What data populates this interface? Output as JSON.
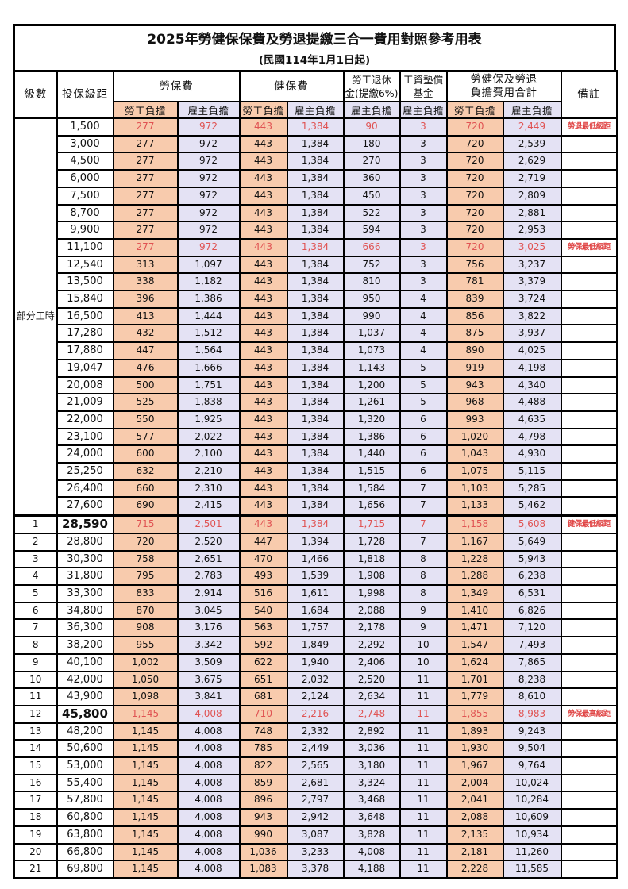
{
  "title": "2025年勞健保保費及勞退提繳三合一費用對照參考用表",
  "subtitle": "(民國114年1月1日起)",
  "colors": {
    "employee_bg": "#F8CBAD",
    "employer_bg": "#E4E2F4",
    "highlight_red": "#E05353",
    "remark_red": "#E04545"
  },
  "headers": {
    "level": "級數",
    "bracket": "投保級距",
    "labor_ins": "勞保費",
    "health_ins": "健保費",
    "pension_line1": "勞工退休",
    "pension_line2": "金(提繳6%)",
    "fund_line1": "工資墊償",
    "fund_line2": "基金",
    "total_line1": "勞健保及勞退",
    "total_line2": "負擔費用合計",
    "remark": "備註",
    "employee_share": "勞工負擔",
    "employer_share": "雇主負擔"
  },
  "part_time": {
    "label": "部分工時",
    "row_span": 23
  },
  "rows": [
    {
      "level": "",
      "bracket": "1,500",
      "values": [
        "277",
        "972",
        "443",
        "1,384",
        "90",
        "3",
        "720",
        "2,449"
      ],
      "remark": "勞退最低級距",
      "red": true,
      "bold": false,
      "thick": false
    },
    {
      "level": "",
      "bracket": "3,000",
      "values": [
        "277",
        "972",
        "443",
        "1,384",
        "180",
        "3",
        "720",
        "2,539"
      ],
      "remark": "",
      "red": false,
      "bold": false,
      "thick": false
    },
    {
      "level": "",
      "bracket": "4,500",
      "values": [
        "277",
        "972",
        "443",
        "1,384",
        "270",
        "3",
        "720",
        "2,629"
      ],
      "remark": "",
      "red": false,
      "bold": false,
      "thick": false
    },
    {
      "level": "",
      "bracket": "6,000",
      "values": [
        "277",
        "972",
        "443",
        "1,384",
        "360",
        "3",
        "720",
        "2,719"
      ],
      "remark": "",
      "red": false,
      "bold": false,
      "thick": false
    },
    {
      "level": "",
      "bracket": "7,500",
      "values": [
        "277",
        "972",
        "443",
        "1,384",
        "450",
        "3",
        "720",
        "2,809"
      ],
      "remark": "",
      "red": false,
      "bold": false,
      "thick": false
    },
    {
      "level": "",
      "bracket": "8,700",
      "values": [
        "277",
        "972",
        "443",
        "1,384",
        "522",
        "3",
        "720",
        "2,881"
      ],
      "remark": "",
      "red": false,
      "bold": false,
      "thick": false
    },
    {
      "level": "",
      "bracket": "9,900",
      "values": [
        "277",
        "972",
        "443",
        "1,384",
        "594",
        "3",
        "720",
        "2,953"
      ],
      "remark": "",
      "red": false,
      "bold": false,
      "thick": false
    },
    {
      "level": "",
      "bracket": "11,100",
      "values": [
        "277",
        "972",
        "443",
        "1,384",
        "666",
        "3",
        "720",
        "3,025"
      ],
      "remark": "勞保最低級距",
      "red": true,
      "bold": false,
      "thick": false
    },
    {
      "level": "",
      "bracket": "12,540",
      "values": [
        "313",
        "1,097",
        "443",
        "1,384",
        "752",
        "3",
        "756",
        "3,237"
      ],
      "remark": "",
      "red": false,
      "bold": false,
      "thick": false
    },
    {
      "level": "",
      "bracket": "13,500",
      "values": [
        "338",
        "1,182",
        "443",
        "1,384",
        "810",
        "3",
        "781",
        "3,379"
      ],
      "remark": "",
      "red": false,
      "bold": false,
      "thick": false
    },
    {
      "level": "",
      "bracket": "15,840",
      "values": [
        "396",
        "1,386",
        "443",
        "1,384",
        "950",
        "4",
        "839",
        "3,724"
      ],
      "remark": "",
      "red": false,
      "bold": false,
      "thick": false
    },
    {
      "level": "",
      "bracket": "16,500",
      "values": [
        "413",
        "1,444",
        "443",
        "1,384",
        "990",
        "4",
        "856",
        "3,822"
      ],
      "remark": "",
      "red": false,
      "bold": false,
      "thick": false
    },
    {
      "level": "",
      "bracket": "17,280",
      "values": [
        "432",
        "1,512",
        "443",
        "1,384",
        "1,037",
        "4",
        "875",
        "3,937"
      ],
      "remark": "",
      "red": false,
      "bold": false,
      "thick": false
    },
    {
      "level": "",
      "bracket": "17,880",
      "values": [
        "447",
        "1,564",
        "443",
        "1,384",
        "1,073",
        "4",
        "890",
        "4,025"
      ],
      "remark": "",
      "red": false,
      "bold": false,
      "thick": false
    },
    {
      "level": "",
      "bracket": "19,047",
      "values": [
        "476",
        "1,666",
        "443",
        "1,384",
        "1,143",
        "5",
        "919",
        "4,198"
      ],
      "remark": "",
      "red": false,
      "bold": false,
      "thick": false
    },
    {
      "level": "",
      "bracket": "20,008",
      "values": [
        "500",
        "1,751",
        "443",
        "1,384",
        "1,200",
        "5",
        "943",
        "4,340"
      ],
      "remark": "",
      "red": false,
      "bold": false,
      "thick": false
    },
    {
      "level": "",
      "bracket": "21,009",
      "values": [
        "525",
        "1,838",
        "443",
        "1,384",
        "1,261",
        "5",
        "968",
        "4,488"
      ],
      "remark": "",
      "red": false,
      "bold": false,
      "thick": false
    },
    {
      "level": "",
      "bracket": "22,000",
      "values": [
        "550",
        "1,925",
        "443",
        "1,384",
        "1,320",
        "6",
        "993",
        "4,635"
      ],
      "remark": "",
      "red": false,
      "bold": false,
      "thick": false
    },
    {
      "level": "",
      "bracket": "23,100",
      "values": [
        "577",
        "2,022",
        "443",
        "1,384",
        "1,386",
        "6",
        "1,020",
        "4,798"
      ],
      "remark": "",
      "red": false,
      "bold": false,
      "thick": false
    },
    {
      "level": "",
      "bracket": "24,000",
      "values": [
        "600",
        "2,100",
        "443",
        "1,384",
        "1,440",
        "6",
        "1,043",
        "4,930"
      ],
      "remark": "",
      "red": false,
      "bold": false,
      "thick": false
    },
    {
      "level": "",
      "bracket": "25,250",
      "values": [
        "632",
        "2,210",
        "443",
        "1,384",
        "1,515",
        "6",
        "1,075",
        "5,115"
      ],
      "remark": "",
      "red": false,
      "bold": false,
      "thick": false
    },
    {
      "level": "",
      "bracket": "26,400",
      "values": [
        "660",
        "2,310",
        "443",
        "1,384",
        "1,584",
        "7",
        "1,103",
        "5,285"
      ],
      "remark": "",
      "red": false,
      "bold": false,
      "thick": false
    },
    {
      "level": "",
      "bracket": "27,600",
      "values": [
        "690",
        "2,415",
        "443",
        "1,384",
        "1,656",
        "7",
        "1,133",
        "5,462"
      ],
      "remark": "",
      "red": false,
      "bold": false,
      "thick": false
    },
    {
      "level": "1",
      "bracket": "28,590",
      "values": [
        "715",
        "2,501",
        "443",
        "1,384",
        "1,715",
        "7",
        "1,158",
        "5,608"
      ],
      "remark": "健保最低級距",
      "red": true,
      "bold": true,
      "thick": true
    },
    {
      "level": "2",
      "bracket": "28,800",
      "values": [
        "720",
        "2,520",
        "447",
        "1,394",
        "1,728",
        "7",
        "1,167",
        "5,649"
      ],
      "remark": "",
      "red": false,
      "bold": false,
      "thick": false
    },
    {
      "level": "3",
      "bracket": "30,300",
      "values": [
        "758",
        "2,651",
        "470",
        "1,466",
        "1,818",
        "8",
        "1,228",
        "5,943"
      ],
      "remark": "",
      "red": false,
      "bold": false,
      "thick": false
    },
    {
      "level": "4",
      "bracket": "31,800",
      "values": [
        "795",
        "2,783",
        "493",
        "1,539",
        "1,908",
        "8",
        "1,288",
        "6,238"
      ],
      "remark": "",
      "red": false,
      "bold": false,
      "thick": false
    },
    {
      "level": "5",
      "bracket": "33,300",
      "values": [
        "833",
        "2,914",
        "516",
        "1,611",
        "1,998",
        "8",
        "1,349",
        "6,531"
      ],
      "remark": "",
      "red": false,
      "bold": false,
      "thick": false
    },
    {
      "level": "6",
      "bracket": "34,800",
      "values": [
        "870",
        "3,045",
        "540",
        "1,684",
        "2,088",
        "9",
        "1,410",
        "6,826"
      ],
      "remark": "",
      "red": false,
      "bold": false,
      "thick": false
    },
    {
      "level": "7",
      "bracket": "36,300",
      "values": [
        "908",
        "3,176",
        "563",
        "1,757",
        "2,178",
        "9",
        "1,471",
        "7,120"
      ],
      "remark": "",
      "red": false,
      "bold": false,
      "thick": false
    },
    {
      "level": "8",
      "bracket": "38,200",
      "values": [
        "955",
        "3,342",
        "592",
        "1,849",
        "2,292",
        "10",
        "1,547",
        "7,493"
      ],
      "remark": "",
      "red": false,
      "bold": false,
      "thick": false
    },
    {
      "level": "9",
      "bracket": "40,100",
      "values": [
        "1,002",
        "3,509",
        "622",
        "1,940",
        "2,406",
        "10",
        "1,624",
        "7,865"
      ],
      "remark": "",
      "red": false,
      "bold": false,
      "thick": false
    },
    {
      "level": "10",
      "bracket": "42,000",
      "values": [
        "1,050",
        "3,675",
        "651",
        "2,032",
        "2,520",
        "11",
        "1,701",
        "8,238"
      ],
      "remark": "",
      "red": false,
      "bold": false,
      "thick": false
    },
    {
      "level": "11",
      "bracket": "43,900",
      "values": [
        "1,098",
        "3,841",
        "681",
        "2,124",
        "2,634",
        "11",
        "1,779",
        "8,610"
      ],
      "remark": "",
      "red": false,
      "bold": false,
      "thick": false
    },
    {
      "level": "12",
      "bracket": "45,800",
      "values": [
        "1,145",
        "4,008",
        "710",
        "2,216",
        "2,748",
        "11",
        "1,855",
        "8,983"
      ],
      "remark": "勞保最高級距",
      "red": true,
      "bold": true,
      "thick": false
    },
    {
      "level": "13",
      "bracket": "48,200",
      "values": [
        "1,145",
        "4,008",
        "748",
        "2,332",
        "2,892",
        "11",
        "1,893",
        "9,243"
      ],
      "remark": "",
      "red": false,
      "bold": false,
      "thick": false
    },
    {
      "level": "14",
      "bracket": "50,600",
      "values": [
        "1,145",
        "4,008",
        "785",
        "2,449",
        "3,036",
        "11",
        "1,930",
        "9,504"
      ],
      "remark": "",
      "red": false,
      "bold": false,
      "thick": false
    },
    {
      "level": "15",
      "bracket": "53,000",
      "values": [
        "1,145",
        "4,008",
        "822",
        "2,565",
        "3,180",
        "11",
        "1,967",
        "9,764"
      ],
      "remark": "",
      "red": false,
      "bold": false,
      "thick": false
    },
    {
      "level": "16",
      "bracket": "55,400",
      "values": [
        "1,145",
        "4,008",
        "859",
        "2,681",
        "3,324",
        "11",
        "2,004",
        "10,024"
      ],
      "remark": "",
      "red": false,
      "bold": false,
      "thick": false
    },
    {
      "level": "17",
      "bracket": "57,800",
      "values": [
        "1,145",
        "4,008",
        "896",
        "2,797",
        "3,468",
        "11",
        "2,041",
        "10,284"
      ],
      "remark": "",
      "red": false,
      "bold": false,
      "thick": false
    },
    {
      "level": "18",
      "bracket": "60,800",
      "values": [
        "1,145",
        "4,008",
        "943",
        "2,942",
        "3,648",
        "11",
        "2,088",
        "10,609"
      ],
      "remark": "",
      "red": false,
      "bold": false,
      "thick": false
    },
    {
      "level": "19",
      "bracket": "63,800",
      "values": [
        "1,145",
        "4,008",
        "990",
        "3,087",
        "3,828",
        "11",
        "2,135",
        "10,934"
      ],
      "remark": "",
      "red": false,
      "bold": false,
      "thick": false
    },
    {
      "level": "20",
      "bracket": "66,800",
      "values": [
        "1,145",
        "4,008",
        "1,036",
        "3,233",
        "4,008",
        "11",
        "2,181",
        "11,260"
      ],
      "remark": "",
      "red": false,
      "bold": false,
      "thick": false
    },
    {
      "level": "21",
      "bracket": "69,800",
      "values": [
        "1,145",
        "4,008",
        "1,083",
        "3,378",
        "4,188",
        "11",
        "2,228",
        "11,585"
      ],
      "remark": "",
      "red": false,
      "bold": false,
      "thick": false
    }
  ]
}
